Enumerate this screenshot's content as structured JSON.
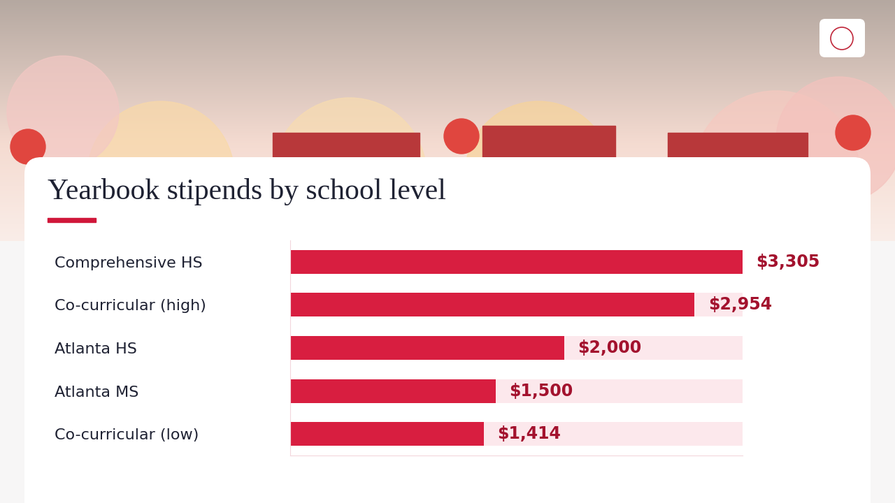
{
  "chart_data": {
    "type": "bar",
    "title": "Yearbook stipends by school level",
    "orientation": "horizontal",
    "categories": [
      "Comprehensive HS",
      "Co-curricular (high)",
      "Atlanta HS",
      "Atlanta MS",
      "Co-curricular (low)"
    ],
    "values": [
      3305,
      2954,
      2000,
      1500,
      1414
    ],
    "value_labels": [
      "$3,305",
      "$2,954",
      "$2,000",
      "$1,500",
      "$1,414"
    ],
    "data_labels": true,
    "color": "#d81e40",
    "xlim": [
      0,
      3305
    ],
    "tick_labels": "y",
    "grid": false
  }
}
